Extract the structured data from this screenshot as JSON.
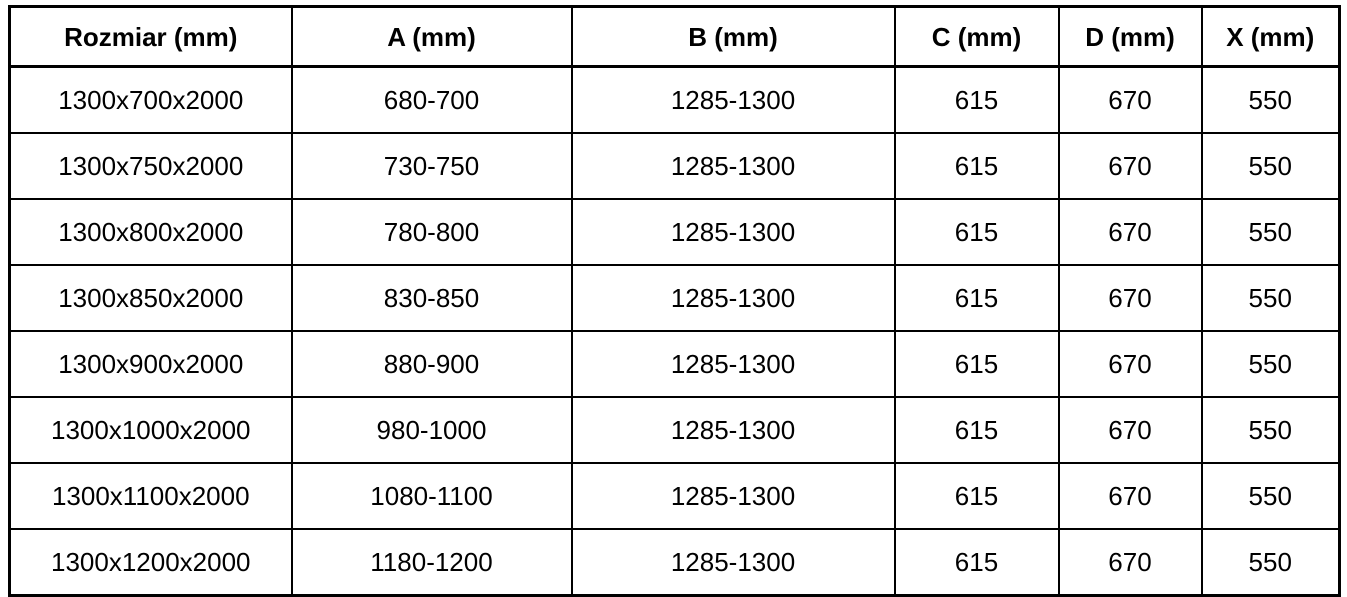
{
  "chart_data": {
    "type": "table",
    "title": "",
    "columns": [
      "Rozmiar (mm)",
      "A (mm)",
      "B (mm)",
      "C (mm)",
      "D (mm)",
      "X (mm)"
    ],
    "rows": [
      [
        "1300x700x2000",
        "680-700",
        "1285-1300",
        "615",
        "670",
        "550"
      ],
      [
        "1300x750x2000",
        "730-750",
        "1285-1300",
        "615",
        "670",
        "550"
      ],
      [
        "1300x800x2000",
        "780-800",
        "1285-1300",
        "615",
        "670",
        "550"
      ],
      [
        "1300x850x2000",
        "830-850",
        "1285-1300",
        "615",
        "670",
        "550"
      ],
      [
        "1300x900x2000",
        "880-900",
        "1285-1300",
        "615",
        "670",
        "550"
      ],
      [
        "1300x1000x2000",
        "980-1000",
        "1285-1300",
        "615",
        "670",
        "550"
      ],
      [
        "1300x1100x2000",
        "1080-1100",
        "1285-1300",
        "615",
        "670",
        "550"
      ],
      [
        "1300x1200x2000",
        "1180-1200",
        "1285-1300",
        "615",
        "670",
        "550"
      ]
    ],
    "layout": {
      "grid": true,
      "header_bold": true,
      "cell_alignment": "center"
    }
  },
  "colors": {
    "border": "#000000",
    "text": "#000000",
    "background": "#ffffff"
  }
}
